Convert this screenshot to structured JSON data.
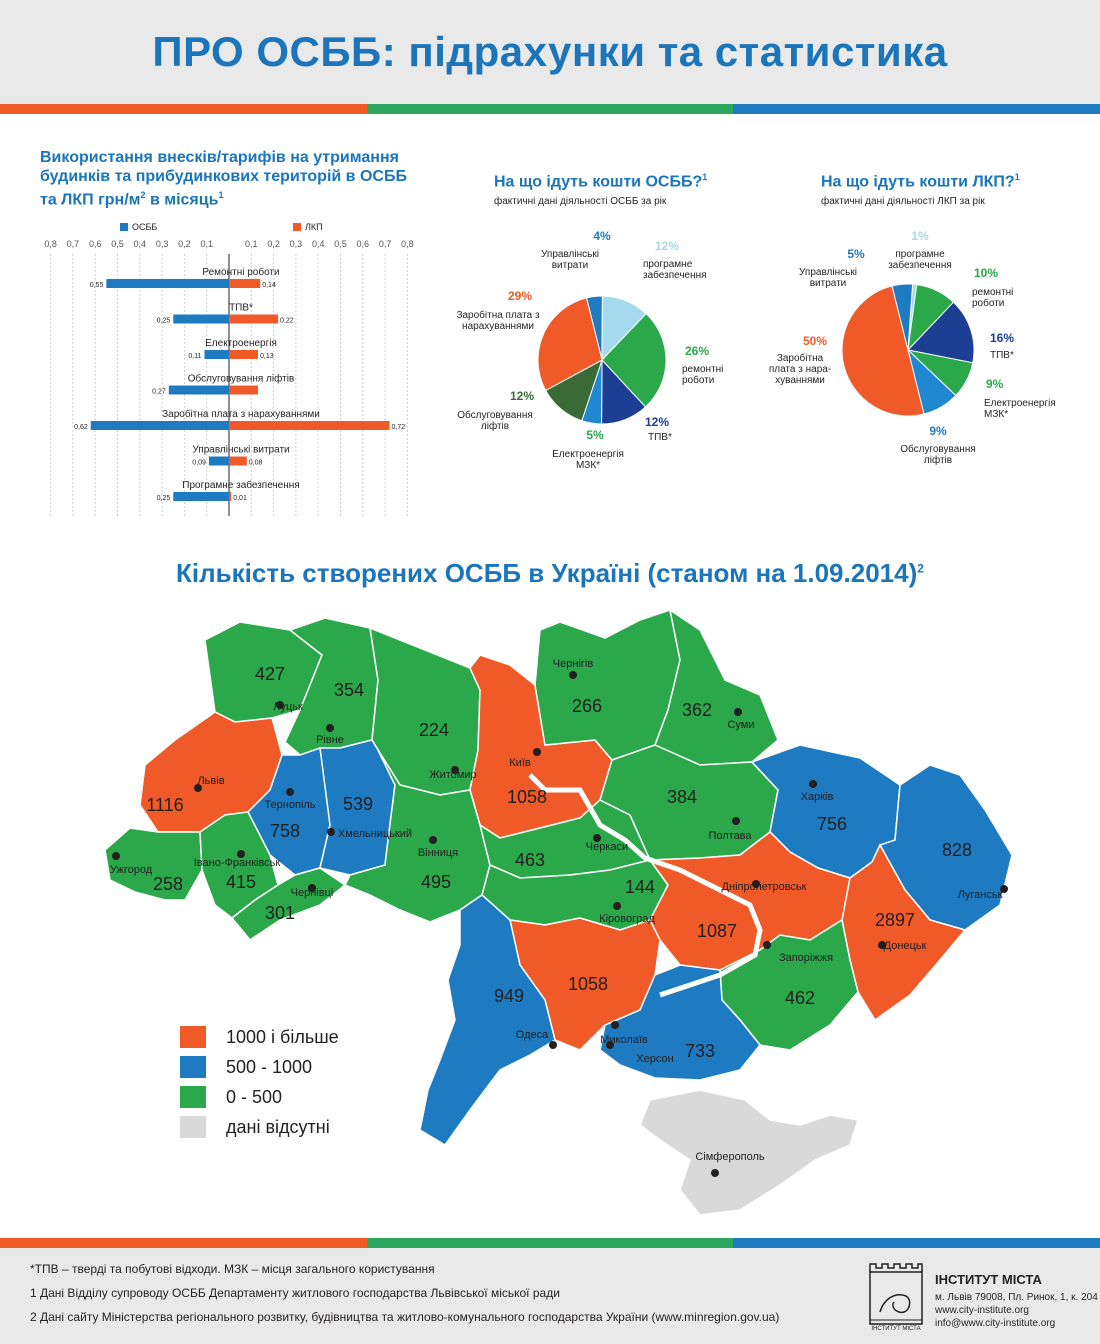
{
  "page": {
    "title": "ПРО ОСББ: підрахунки та статистика"
  },
  "bar_section": {
    "title_line1": "Використання  внесків/тарифів на утримання",
    "title_line2": "будинків та прибудинкових територій в ОСББ",
    "title_line3": "та ЛКП грн/м",
    "title_sq": "2",
    "title_tail": " в місяць",
    "title_note": "1",
    "legend_osbb": "ОСББ",
    "legend_lkp": "ЛКП"
  },
  "pie1": {
    "title": "На що ідуть кошти ОСББ?",
    "note": "1",
    "subtitle": "фактичні дані діяльності  ОСББ за рік"
  },
  "pie2": {
    "title": "На що ідуть кошти ЛКП?",
    "note": "1",
    "subtitle": "фактичні дані діяльності ЛКП за рік"
  },
  "map": {
    "title": "Кількість створених ОСББ в Україні (станом на 1.09.2014)",
    "note": "2",
    "legend": [
      {
        "label": "1000 і більше",
        "color": "#ef5a28"
      },
      {
        "label": "500 - 1000",
        "color": "#1f7bc1"
      },
      {
        "label": "0 - 500",
        "color": "#2ba84a"
      },
      {
        "label": "дані відсутні",
        "color": "#d9d9d9"
      }
    ],
    "regions": [
      {
        "city": "Луцьк",
        "value": "427",
        "band": "green"
      },
      {
        "city": "Рівне",
        "value": "354",
        "band": "green"
      },
      {
        "city": "Житомир",
        "value": "224",
        "band": "green"
      },
      {
        "city": "Київ",
        "value": "1058",
        "band": "orange"
      },
      {
        "city": "Чернігів",
        "value": "266",
        "band": "green"
      },
      {
        "city": "Суми",
        "value": "362",
        "band": "green"
      },
      {
        "city": "Львів",
        "value": "1116",
        "band": "orange"
      },
      {
        "city": "Тернопіль",
        "value": "758",
        "band": "blue"
      },
      {
        "city": "Хмельницький",
        "value": "539",
        "band": "blue"
      },
      {
        "city": "Полтава",
        "value": "384",
        "band": "green"
      },
      {
        "city": "Харків",
        "value": "756",
        "band": "blue"
      },
      {
        "city": "Ужгород",
        "value": "258",
        "band": "green"
      },
      {
        "city": "Івано-Франківськ",
        "value": "415",
        "band": "green"
      },
      {
        "city": "Чернівці",
        "value": "301",
        "band": "green"
      },
      {
        "city": "Вінниця",
        "value": "495",
        "band": "green"
      },
      {
        "city": "Черкаси",
        "value": "463",
        "band": "green"
      },
      {
        "city": "Кіровоград",
        "value": "144",
        "band": "green"
      },
      {
        "city": "Дніпропетровськ",
        "value": "1087",
        "band": "orange"
      },
      {
        "city": "Луганськ",
        "value": "828",
        "band": "blue"
      },
      {
        "city": "Донецьк",
        "value": "2897",
        "band": "orange"
      },
      {
        "city": "Запоріжжя",
        "value": "462",
        "band": "green"
      },
      {
        "city": "Миколаїв",
        "value": "1058",
        "band": "orange"
      },
      {
        "city": "Одеса",
        "value": "949",
        "band": "blue"
      },
      {
        "city": "Херсон",
        "value": "733",
        "band": "blue"
      },
      {
        "city": "Сімферополь",
        "value": "",
        "band": "grey"
      }
    ]
  },
  "footer": {
    "abbrev": "*ТПВ – тверді та побутові відходи.   МЗК – місця загального користування",
    "note1": "1 Дані Відділу супроводу ОСББ Департаменту житлового господарства Львівської міської ради",
    "note2": "2 Дані сайту Міністерства регіонального розвитку, будівництва та житлово-комунального господарства України (www.minregion.gov.ua)",
    "institute_name": "ІНСТИТУТ МІСТА",
    "address": "м. Львів 79008, Пл. Ринок, 1, к. 204",
    "web": "www.city-institute.org",
    "email": "info@www.city-institute.org",
    "logo_caption": "ІНСТИТУТ МІСТА"
  },
  "colors": {
    "blue": "#1f7bc1",
    "orange": "#ef5a28",
    "green": "#2ba84a",
    "title_blue": "#1a75bb",
    "grey": "#d9d9d9"
  },
  "chart_data": [
    {
      "type": "bar",
      "orientation": "horizontal-diverging",
      "categories": [
        "Ремонтні роботи",
        "ТПВ*",
        "Електроенергія",
        "Обслуговування ліфтів",
        "Заробітна плата з нарахуваннями",
        "Управлінські витрати",
        "Програмне забезпечення"
      ],
      "series": [
        {
          "name": "ОСББ",
          "values": [
            0.55,
            0.25,
            0.11,
            0.27,
            0.62,
            0.09,
            0.25
          ],
          "labels": [
            "0,55",
            "0,25",
            "0,11",
            "0,27",
            "0,62",
            "0,09",
            "0,25"
          ]
        },
        {
          "name": "ЛКП",
          "values": [
            0.14,
            0.22,
            0.13,
            0.13,
            0.72,
            0.08,
            0.01
          ],
          "labels": [
            "0,14",
            "0,22",
            "0,13",
            "",
            "0,72",
            "0,08",
            "0,01"
          ]
        }
      ],
      "ticks_left": [
        "0,8",
        "0,7",
        "0,6",
        "0,5",
        "0,4",
        "0,3",
        "0,2",
        "0,1"
      ],
      "ticks_right": [
        "0,1",
        "0,2",
        "0,3",
        "0,4",
        "0,5",
        "0,6",
        "0,7",
        "0,8"
      ],
      "xlim": [
        -0.8,
        0.8
      ],
      "grid": true
    },
    {
      "type": "pie",
      "title": "На що ідуть кошти ОСББ?",
      "slices": [
        {
          "label": "Управлінські витрати",
          "value": 4,
          "pct": "4%",
          "color": "#1f7bc1"
        },
        {
          "label": "програмне забезпечення",
          "value": 12,
          "pct": "12%",
          "color": "#a5d9ee"
        },
        {
          "label": "ремонтні роботи",
          "value": 26,
          "pct": "26%",
          "color": "#2ba84a"
        },
        {
          "label": "ТПВ*",
          "value": 12,
          "pct": "12%",
          "color": "#1c3f94"
        },
        {
          "label": "Електроенергія МЗК*",
          "value": 5,
          "pct": "5%",
          "color": "#1f88d0"
        },
        {
          "label": "Обслуговування ліфтів",
          "value": 12,
          "pct": "12%",
          "color": "#3a6a36"
        },
        {
          "label": "Заробітна плата з нарахуваннями",
          "value": 29,
          "pct": "29%",
          "color": "#ef5a28"
        }
      ]
    },
    {
      "type": "pie",
      "title": "На що ідуть кошти ЛКП?",
      "slices": [
        {
          "label": "програмне забезпечення",
          "value": 1,
          "pct": "1%",
          "color": "#a5d9ee"
        },
        {
          "label": "ремонтні роботи",
          "value": 10,
          "pct": "10%",
          "color": "#2ba84a"
        },
        {
          "label": "ТПВ*",
          "value": 16,
          "pct": "16%",
          "color": "#1c3f94"
        },
        {
          "label": "Електроенергія МЗК*",
          "value": 9,
          "pct": "9%",
          "color": "#2ba84a"
        },
        {
          "label": "Обслуговування ліфтів",
          "value": 9,
          "pct": "9%",
          "color": "#1f88d0"
        },
        {
          "label": "Заробітна плата з нарахуваннями",
          "value": 50,
          "pct": "50%",
          "color": "#ef5a28"
        },
        {
          "label": "Управлінські витрати",
          "value": 5,
          "pct": "5%",
          "color": "#1f7bc1"
        }
      ]
    }
  ]
}
